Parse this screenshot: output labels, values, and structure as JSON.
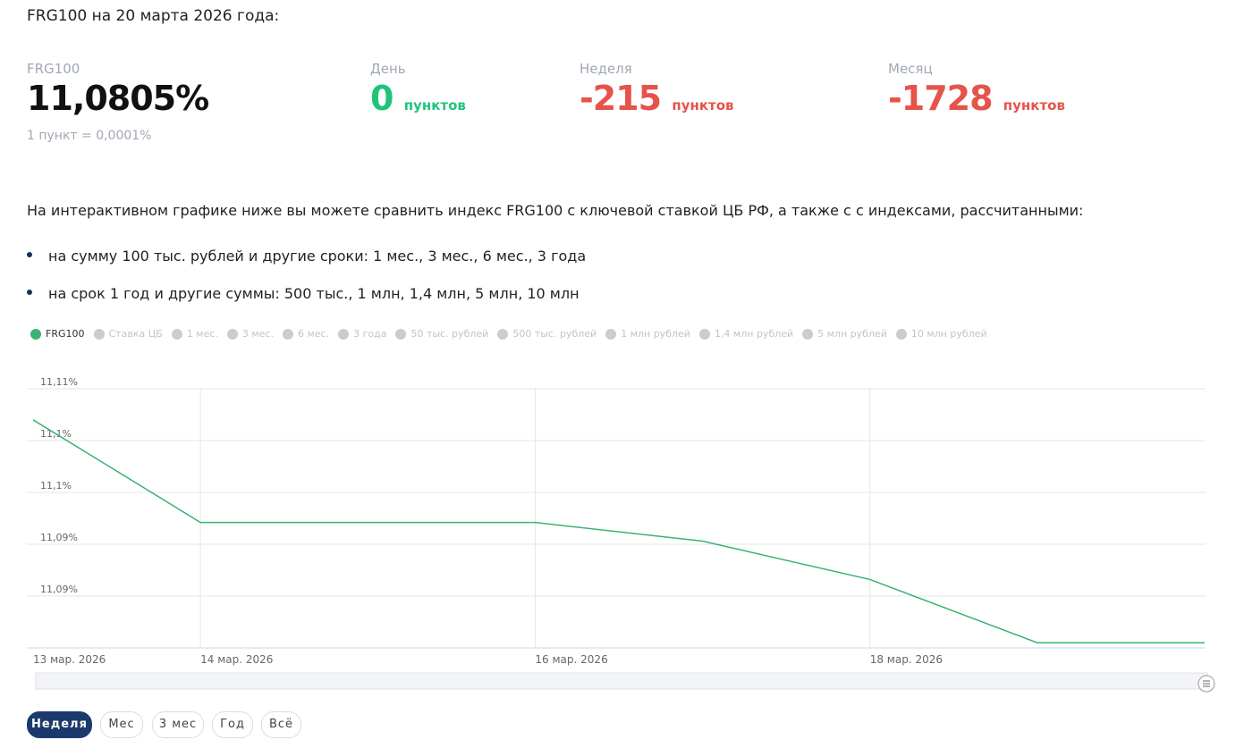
{
  "header": {
    "title": "FRG100 на 20 марта 2026 года:"
  },
  "stats": [
    {
      "label": "FRG100",
      "value": "11,0805%",
      "note": "1 пункт = 0,0001%"
    },
    {
      "label": "День",
      "value": "0",
      "unit": "пунктов"
    },
    {
      "label": "Неделя",
      "value": "-215",
      "unit": "пунктов"
    },
    {
      "label": "Месяц",
      "value": "-1728",
      "unit": "пунктов"
    }
  ],
  "intro": "На интерактивном графике ниже вы можете сравнить индекс FRG100 с ключевой ставкой ЦБ РФ, а также с с индексами, рассчитанными:",
  "bullets": [
    "на сумму 100 тыс. рублей и другие сроки: 1 мес., 3 мес., 6 мес., 3 года",
    "на срок 1 год и другие суммы: 500 тыс., 1 млн, 1,4 млн, 5 млн, 10 млн"
  ],
  "legend_inactive": [
    "Ставка ЦБ",
    "1 мес.",
    "3 мес.",
    "6 мес.",
    "3 года",
    "50 тыс. рублей",
    "500 тыс. рублей",
    "1 млн рублей",
    "1,4 млн рублей",
    "5 млн рублей",
    "10 млн рублей"
  ],
  "chart_data": {
    "type": "line",
    "categories": [
      "13 мар. 2026",
      "14 мар. 2026",
      null,
      "16 мар. 2026",
      null,
      "18 мар. 2026",
      null,
      null
    ],
    "series": [
      {
        "name": "FRG100",
        "color": "#3bb273",
        "values": [
          11.102,
          11.0921,
          11.0921,
          11.0921,
          11.0903,
          11.0866,
          11.0805,
          11.0805
        ]
      }
    ],
    "ylim": [
      11.08,
      11.105
    ],
    "yticks": [
      {
        "value": 11.105,
        "label": "11,11%"
      },
      {
        "value": 11.1,
        "label": "11,1%"
      },
      {
        "value": 11.095,
        "label": "11,1%"
      },
      {
        "value": 11.09,
        "label": "11,09%"
      },
      {
        "value": 11.085,
        "label": "11,09%"
      }
    ],
    "grid": true
  },
  "range_buttons": [
    "Неделя",
    "Мес",
    "3 мес",
    "Год",
    "Всё"
  ]
}
